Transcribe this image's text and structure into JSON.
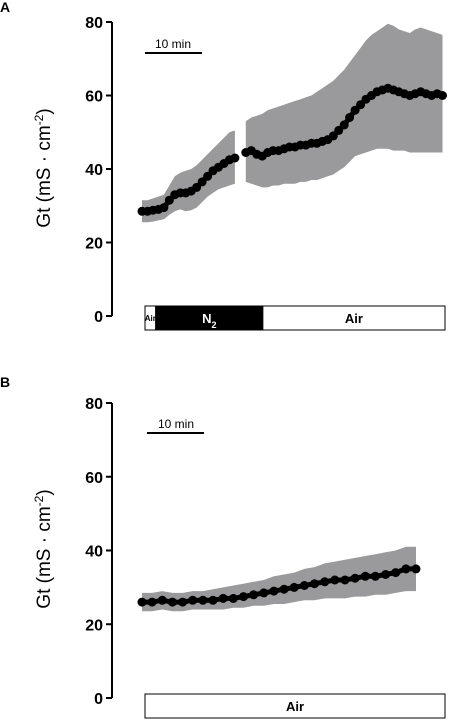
{
  "chart_data": [
    {
      "type": "line",
      "panel_label": "A",
      "ylabel_main": "Gt (mS · cm",
      "ylabel_sup": "-2",
      "ylabel_end": ")",
      "ylim": [
        0,
        80
      ],
      "yticks": [
        "0",
        "20",
        "40",
        "60",
        "80"
      ],
      "grid": false,
      "scalebar_label": "10 min",
      "x_minutes": [
        0,
        1,
        2,
        3,
        4,
        5,
        6,
        7,
        8,
        9,
        10,
        11,
        12,
        13,
        14,
        15,
        16,
        17,
        18,
        19,
        20,
        21,
        22,
        23,
        24,
        25,
        26,
        27,
        28,
        29,
        30,
        31,
        32,
        33,
        34,
        35,
        36,
        37,
        38,
        39,
        40,
        41,
        42,
        43,
        44,
        45,
        46,
        47,
        48,
        49,
        50,
        51,
        52,
        53,
        54,
        55
      ],
      "series": [
        {
          "mean": [
            28.5,
            28.5,
            28.8,
            29.0,
            29.5,
            31.5,
            33.0,
            33.5,
            33.5,
            34.0,
            35.0,
            36.5,
            38.0,
            39.5,
            40.5,
            41.5,
            42.5,
            43.0,
            null,
            44.5,
            45.0,
            44.0,
            43.5,
            44.5,
            45.0,
            45.0,
            45.5,
            46.0,
            46.0,
            46.5,
            46.5,
            47.0,
            47.0,
            47.5,
            48.0,
            49.0,
            50.5,
            52.0,
            54.0,
            56.0,
            57.5,
            59.0,
            60.0,
            61.0,
            61.5,
            62.0,
            61.5,
            61.0,
            60.5,
            60.0,
            60.5,
            61.0,
            60.5,
            60.0,
            60.5,
            60.0
          ],
          "upper": [
            31.5,
            31.5,
            32.0,
            32.5,
            33.0,
            35.5,
            38.0,
            39.0,
            39.5,
            40.0,
            41.0,
            42.5,
            44.0,
            45.5,
            47.0,
            48.5,
            50.0,
            50.5,
            null,
            53.0,
            54.0,
            54.5,
            55.0,
            56.0,
            56.5,
            57.0,
            57.5,
            58.0,
            58.5,
            59.0,
            59.5,
            60.0,
            61.0,
            62.0,
            63.0,
            64.0,
            65.5,
            67.0,
            69.0,
            71.0,
            73.0,
            75.0,
            76.5,
            77.5,
            78.5,
            79.5,
            79.0,
            78.0,
            77.5,
            77.0,
            78.0,
            78.5,
            78.0,
            77.5,
            77.0,
            76.5
          ],
          "lower": [
            25.5,
            25.5,
            25.7,
            26.0,
            26.3,
            27.5,
            28.5,
            29.0,
            28.5,
            28.8,
            29.5,
            31.0,
            32.5,
            33.5,
            34.5,
            35.0,
            35.5,
            36.0,
            null,
            36.5,
            36.0,
            35.5,
            35.0,
            35.0,
            35.5,
            35.5,
            36.0,
            36.0,
            36.0,
            36.5,
            36.5,
            37.0,
            37.0,
            37.5,
            38.0,
            38.5,
            39.5,
            40.5,
            42.0,
            43.5,
            44.0,
            44.5,
            45.0,
            45.5,
            45.5,
            45.5,
            45.0,
            45.0,
            45.0,
            44.5,
            44.5,
            44.5,
            44.5,
            44.5,
            44.5,
            44.5
          ]
        }
      ],
      "conditions": [
        {
          "label": "Air",
          "start": 0,
          "end": 2,
          "fill": "#ffffff",
          "text": "#000000",
          "small": true
        },
        {
          "label": "N",
          "sub": "2",
          "start": 2,
          "end": 22,
          "fill": "#000000",
          "text": "#ffffff",
          "small": false
        },
        {
          "label": "Air",
          "start": 22,
          "end": 56,
          "fill": "#ffffff",
          "text": "#000000",
          "small": false
        }
      ]
    },
    {
      "type": "line",
      "panel_label": "B",
      "ylabel_main": "Gt (mS · cm",
      "ylabel_sup": "-2",
      "ylabel_end": ")",
      "ylim": [
        0,
        80
      ],
      "yticks": [
        "0",
        "20",
        "40",
        "60",
        "80"
      ],
      "grid": false,
      "scalebar_label": "10 min",
      "x_minutes": [
        0,
        2,
        4,
        6,
        8,
        10,
        12,
        14,
        16,
        18,
        20,
        22,
        24,
        26,
        28,
        30,
        32,
        34,
        36,
        38,
        40,
        42,
        44,
        46,
        48,
        50,
        52,
        54
      ],
      "series": [
        {
          "mean": [
            26.0,
            26.0,
            26.5,
            26.0,
            26.0,
            26.5,
            26.5,
            26.5,
            27.0,
            27.0,
            27.5,
            28.0,
            28.5,
            29.0,
            29.5,
            30.0,
            30.5,
            31.0,
            31.5,
            32.0,
            32.0,
            32.5,
            33.0,
            33.0,
            33.5,
            34.0,
            35.0,
            35.0
          ],
          "upper": [
            28.5,
            28.5,
            29.0,
            28.5,
            28.5,
            29.0,
            29.0,
            29.5,
            30.0,
            30.5,
            31.0,
            31.5,
            32.0,
            33.0,
            33.5,
            34.0,
            35.0,
            35.5,
            36.5,
            37.0,
            37.5,
            38.0,
            38.5,
            39.0,
            39.5,
            40.0,
            41.0,
            41.0
          ],
          "lower": [
            23.5,
            23.5,
            24.0,
            23.5,
            23.5,
            24.0,
            24.0,
            24.0,
            24.0,
            24.5,
            24.5,
            25.0,
            25.0,
            25.5,
            25.5,
            26.0,
            26.5,
            26.5,
            27.0,
            27.0,
            27.0,
            27.5,
            27.5,
            28.0,
            28.0,
            28.5,
            29.0,
            29.0
          ]
        }
      ],
      "conditions": [
        {
          "label": "Air",
          "start": 0,
          "end": 56,
          "fill": "#ffffff",
          "text": "#000000",
          "small": false
        }
      ]
    }
  ]
}
